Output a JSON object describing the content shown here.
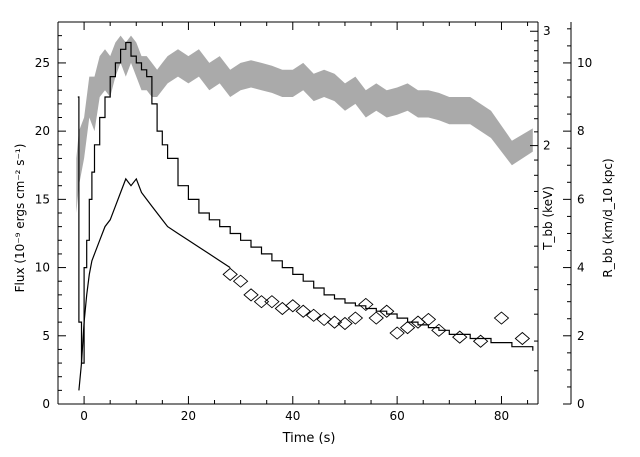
{
  "chart_data": {
    "type": "line",
    "xlabel": "Time (s)",
    "ylabel_left": "Flux (10⁻⁹ ergs cm⁻² s⁻¹)",
    "ylabel_tbb": "T_bb (keV)",
    "ylabel_rbb": "R_bb (km/d_10 kpc)",
    "x_ticks": [
      0,
      20,
      40,
      60,
      80
    ],
    "x_tick_labels": [
      "0",
      "20",
      "40",
      "60",
      "80"
    ],
    "y_left_ticks": [
      0,
      5,
      10,
      15,
      20,
      25
    ],
    "y_left_tick_labels": [
      "0",
      "5",
      "10",
      "15",
      "20",
      "25"
    ],
    "tbb_tick_labels": [
      "2",
      "3"
    ],
    "rbb_tick_labels": [
      "0",
      "2",
      "4",
      "6",
      "8",
      "10"
    ],
    "xlim": [
      -5,
      87
    ],
    "ylim_left": [
      0,
      28
    ],
    "tbb_scale": "log",
    "tbb_ticks": [
      2,
      3
    ],
    "rbb_ylim": [
      0,
      11.2
    ],
    "rbb_ticks": [
      0,
      2,
      4,
      6,
      8,
      10
    ],
    "series": [
      {
        "style": "step",
        "x": [
          -1.2,
          -1,
          -0.5,
          0,
          0.5,
          1,
          1.5,
          2,
          3,
          4,
          5,
          6,
          7,
          8,
          9,
          10,
          11,
          12,
          13,
          14,
          15,
          16,
          18,
          20,
          22,
          24,
          26,
          28,
          30,
          32,
          34,
          36,
          38,
          40,
          42,
          44,
          46,
          48,
          50,
          52,
          54,
          56,
          58,
          60,
          62,
          64,
          66,
          68,
          70,
          74,
          78,
          82,
          86
        ],
        "y": [
          22.5,
          6,
          3,
          10,
          12,
          15,
          17,
          19,
          21,
          22.5,
          24,
          25,
          26,
          26.5,
          25.5,
          25,
          24.5,
          24,
          22,
          20,
          19,
          18,
          16,
          15,
          14,
          13.5,
          13,
          12.5,
          12,
          11.5,
          11,
          10.5,
          10,
          9.5,
          9,
          8.5,
          8,
          7.7,
          7.4,
          7.2,
          7.0,
          6.8,
          6.6,
          6.3,
          6.0,
          5.8,
          5.6,
          5.4,
          5.1,
          4.8,
          4.5,
          4.2,
          3.9
        ]
      },
      {
        "style": "line",
        "x": [
          -1,
          -0.5,
          0,
          0.5,
          1,
          1.5,
          2,
          3,
          4,
          5,
          6,
          7,
          8,
          9,
          10,
          11,
          12,
          13,
          14,
          15,
          16,
          18,
          20,
          22,
          24,
          26,
          28
        ],
        "y": [
          1,
          3,
          6,
          8,
          9.5,
          10.5,
          11,
          12,
          13,
          13.5,
          14.5,
          15.5,
          16.5,
          16,
          16.5,
          15.5,
          15,
          14.5,
          14,
          13.5,
          13,
          12.5,
          12,
          11.5,
          11,
          10.5,
          10
        ]
      },
      {
        "style": "band",
        "color": "#aaaaaa",
        "x": [
          -1.5,
          -1,
          0,
          1,
          2,
          3,
          4,
          5,
          6,
          7,
          8,
          9,
          10,
          11,
          12,
          13,
          14,
          15,
          16,
          18,
          20,
          22,
          24,
          26,
          28,
          30,
          32,
          34,
          36,
          38,
          40,
          42,
          44,
          46,
          48,
          50,
          52,
          54,
          56,
          58,
          60,
          62,
          64,
          66,
          68,
          70,
          72,
          74,
          76,
          78,
          82,
          86
        ],
        "lo": [
          14,
          16,
          18,
          21,
          20,
          22.5,
          23,
          22.5,
          24,
          25,
          24,
          25,
          24,
          23,
          23,
          22.5,
          22.5,
          23,
          23.5,
          24,
          23.5,
          24,
          23,
          23.5,
          22.5,
          23,
          23.2,
          23,
          22.8,
          22.5,
          22.5,
          23,
          22.2,
          22.5,
          22.2,
          21.5,
          22,
          21,
          21.5,
          21,
          21.2,
          21.5,
          21,
          21,
          20.8,
          20.5,
          20.5,
          20.5,
          20,
          19.5,
          17.5,
          18.5
        ],
        "hi": [
          18,
          20,
          21,
          24,
          24,
          25.5,
          26,
          25.5,
          26.5,
          27,
          26.5,
          27,
          26.5,
          25.5,
          25.5,
          25,
          24.5,
          25,
          25.5,
          26,
          25.5,
          26,
          25,
          25.5,
          24.5,
          25,
          25.2,
          25,
          24.8,
          24.5,
          24.5,
          25,
          24.2,
          24.5,
          24.2,
          23.5,
          24,
          23,
          23.5,
          23,
          23.2,
          23.5,
          23,
          23,
          22.8,
          22.5,
          22.5,
          22.5,
          22,
          21.5,
          19.3,
          20.2
        ]
      },
      {
        "style": "diamonds",
        "x": [
          28,
          30,
          32,
          34,
          36,
          38,
          40,
          42,
          44,
          46,
          48,
          50,
          52,
          54,
          56,
          58,
          60,
          62,
          64,
          66,
          68,
          72,
          76,
          80,
          84
        ],
        "y": [
          9.5,
          9,
          8,
          7.5,
          7.5,
          7,
          7.2,
          6.8,
          6.5,
          6.2,
          6.0,
          5.9,
          6.3,
          7.3,
          6.3,
          6.8,
          5.2,
          5.6,
          6.0,
          6.2,
          5.4,
          4.9,
          4.6,
          6.3,
          4.8
        ]
      }
    ]
  }
}
